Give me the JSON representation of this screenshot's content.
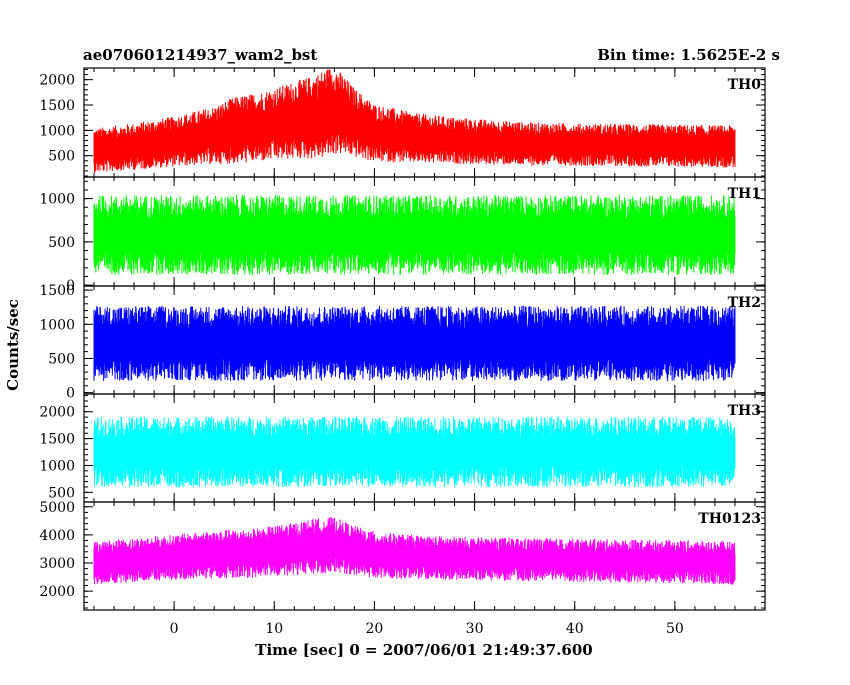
{
  "header": {
    "source_name": "ae070601214937_wam2_bst",
    "bin_time": "Bin time: 1.5625E-2 s"
  },
  "chart_data": {
    "type": "line",
    "xlabel": "Time [sec] 0 = 2007/06/01 21:49:37.600",
    "ylabel": "Counts/sec",
    "xlim": [
      -9,
      59
    ],
    "x_ticks": [
      0,
      10,
      20,
      30,
      40,
      50
    ],
    "x_minor_step": 2,
    "data_x_range": [
      -8,
      56
    ],
    "bin_time_s": 0.015625,
    "series": [
      {
        "name": "TH0",
        "color": "#ff0000",
        "ylim": [
          80,
          2230
        ],
        "y_ticks": [
          500,
          1000,
          1500,
          2000
        ],
        "y_minor_step": 100,
        "profile_x": [
          -8,
          -4,
          0,
          4,
          6,
          8,
          10,
          12,
          14,
          15,
          16,
          17,
          18,
          20,
          24,
          28,
          32,
          36,
          40,
          44,
          48,
          52,
          56
        ],
        "profile_mid": [
          600,
          680,
          780,
          900,
          1000,
          1050,
          1120,
          1200,
          1260,
          1330,
          1400,
          1300,
          1150,
          950,
          850,
          800,
          760,
          730,
          720,
          710,
          700,
          690,
          680
        ],
        "profile_spread": [
          400,
          420,
          450,
          520,
          600,
          620,
          650,
          700,
          750,
          800,
          800,
          700,
          620,
          520,
          450,
          420,
          400,
          390,
          380,
          380,
          380,
          380,
          380
        ]
      },
      {
        "name": "TH1",
        "color": "#00ff00",
        "ylim": [
          -10,
          1250
        ],
        "y_ticks": [
          0,
          500,
          1000
        ],
        "y_minor_step": 100,
        "profile_x": [
          -8,
          56
        ],
        "profile_mid": [
          580,
          580
        ],
        "profile_spread": [
          420,
          420
        ]
      },
      {
        "name": "TH2",
        "color": "#0000ff",
        "ylim": [
          -20,
          1560
        ],
        "y_ticks": [
          0,
          500,
          1000,
          1500
        ],
        "y_minor_step": 100,
        "profile_x": [
          -8,
          56
        ],
        "profile_mid": [
          720,
          720
        ],
        "profile_spread": [
          500,
          500
        ]
      },
      {
        "name": "TH3",
        "color": "#00ffff",
        "ylim": [
          320,
          2330
        ],
        "y_ticks": [
          500,
          1000,
          1500,
          2000
        ],
        "y_minor_step": 100,
        "profile_x": [
          -8,
          56
        ],
        "profile_mid": [
          1250,
          1250
        ],
        "profile_spread": [
          600,
          600
        ]
      },
      {
        "name": "TH0123",
        "color": "#ff00ff",
        "ylim": [
          1330,
          5170
        ],
        "y_ticks": [
          2000,
          3000,
          4000,
          5000
        ],
        "y_minor_step": 200,
        "profile_x": [
          -8,
          -4,
          0,
          4,
          8,
          12,
          14,
          16,
          18,
          20,
          24,
          30,
          40,
          50,
          56
        ],
        "profile_mid": [
          3000,
          3100,
          3200,
          3300,
          3350,
          3500,
          3600,
          3650,
          3450,
          3300,
          3200,
          3150,
          3100,
          3050,
          3000
        ],
        "profile_spread": [
          700,
          720,
          740,
          780,
          800,
          850,
          900,
          900,
          800,
          750,
          720,
          700,
          700,
          700,
          700
        ]
      }
    ]
  }
}
